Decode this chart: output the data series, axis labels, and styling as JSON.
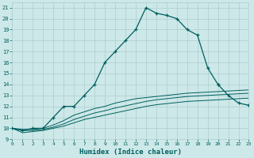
{
  "xlabel": "Humidex (Indice chaleur)",
  "x_values": [
    0,
    1,
    2,
    3,
    4,
    5,
    6,
    7,
    8,
    9,
    10,
    11,
    12,
    13,
    14,
    15,
    16,
    17,
    18,
    19,
    20,
    21,
    22,
    23
  ],
  "main_line": [
    10,
    9.8,
    10,
    10,
    11,
    12,
    12,
    13,
    14,
    16,
    17,
    18,
    19,
    21,
    20.5,
    20.3,
    20,
    19,
    18.5,
    15.5,
    14,
    null,
    null,
    null
  ],
  "extra_right": [
    null,
    null,
    null,
    null,
    null,
    null,
    null,
    null,
    null,
    null,
    null,
    null,
    null,
    null,
    null,
    null,
    null,
    null,
    null,
    null,
    14,
    13,
    12.3,
    12.1
  ],
  "line_upper": [
    10,
    9.9,
    9.9,
    10,
    10.3,
    10.7,
    11.2,
    11.5,
    11.8,
    12.0,
    12.3,
    12.5,
    12.7,
    12.8,
    12.9,
    13.0,
    13.1,
    13.2,
    13.25,
    13.3,
    13.35,
    13.4,
    13.45,
    13.5
  ],
  "line_mid": [
    10,
    9.8,
    9.8,
    9.9,
    10.1,
    10.4,
    10.8,
    11.1,
    11.4,
    11.6,
    11.85,
    12.05,
    12.25,
    12.45,
    12.6,
    12.7,
    12.8,
    12.9,
    12.95,
    13.0,
    13.05,
    13.1,
    13.15,
    13.2
  ],
  "line_lower": [
    10,
    9.6,
    9.7,
    9.8,
    10.0,
    10.2,
    10.5,
    10.8,
    11.0,
    11.2,
    11.4,
    11.6,
    11.8,
    12.0,
    12.15,
    12.25,
    12.35,
    12.45,
    12.5,
    12.55,
    12.6,
    12.65,
    12.7,
    12.75
  ],
  "bg_color": "#cde8e8",
  "grid_color": "#aecece",
  "line_color": "#005f5f",
  "ylim": [
    9,
    21.5
  ],
  "xlim": [
    0,
    23
  ],
  "yticks": [
    9,
    10,
    11,
    12,
    13,
    14,
    15,
    16,
    17,
    18,
    19,
    20,
    21
  ],
  "xticks": [
    0,
    1,
    2,
    3,
    4,
    5,
    6,
    7,
    8,
    9,
    10,
    11,
    12,
    13,
    14,
    15,
    16,
    17,
    18,
    19,
    20,
    21,
    22,
    23
  ]
}
